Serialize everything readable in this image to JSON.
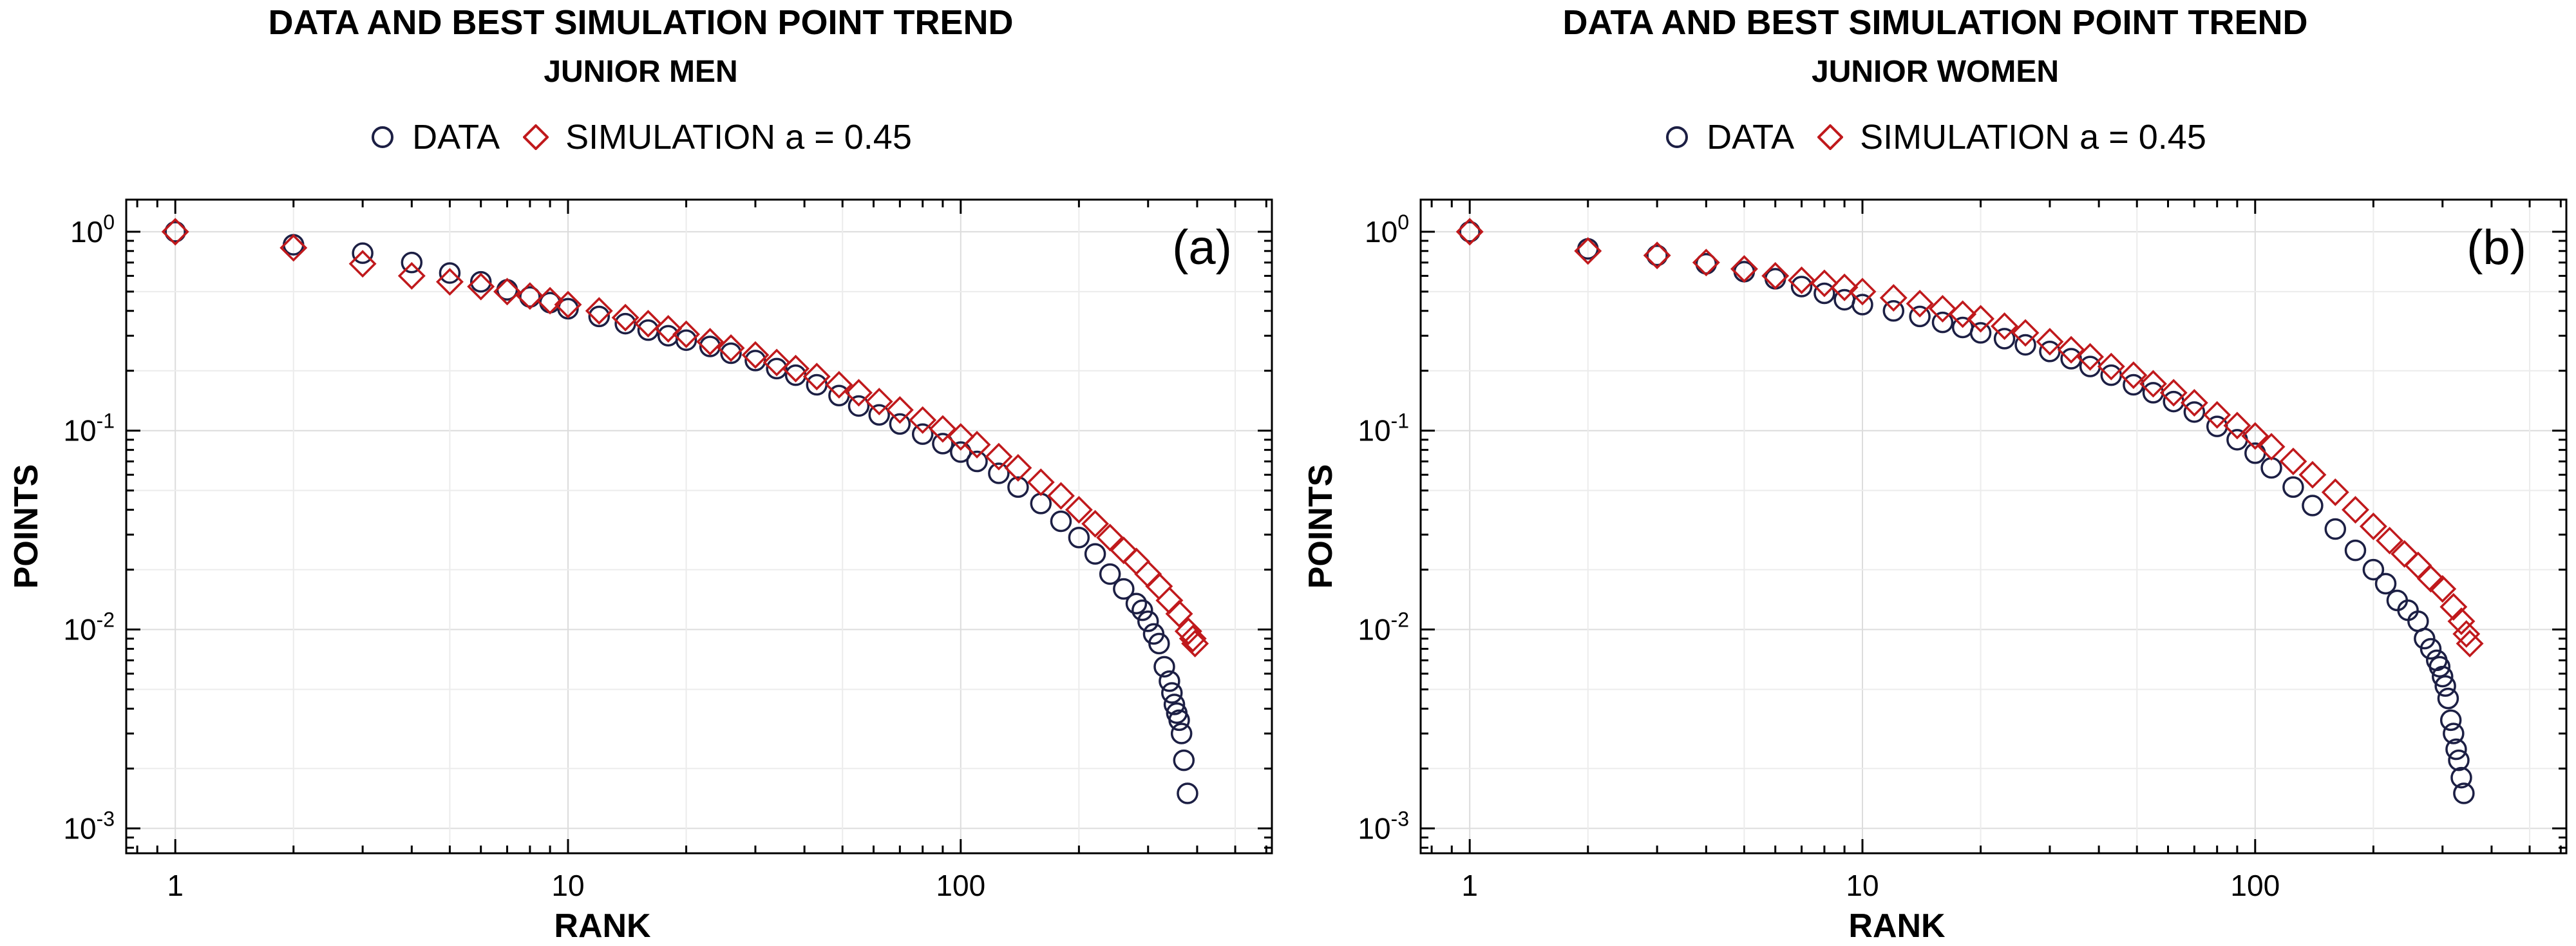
{
  "colors": {
    "data": "#1c1f44",
    "simulation": "#c0191c",
    "grid": "#dcdcdc",
    "axis": "#000000"
  },
  "chart_data": [
    {
      "type": "scatter",
      "title": "DATA AND BEST SIMULATION POINT TREND",
      "subtitle": "JUNIOR MEN",
      "panel_label": "(a)",
      "xlabel": "RANK",
      "ylabel": "POINTS",
      "xscale": "log",
      "yscale": "log",
      "xlim": [
        0.75,
        620
      ],
      "ylim": [
        0.00075,
        1.45
      ],
      "x_ticks": [
        1,
        10,
        100
      ],
      "x_tick_labels": [
        "1",
        "10",
        "100"
      ],
      "y_ticks": [
        0.001,
        0.01,
        0.1,
        1
      ],
      "y_tick_labels": [
        {
          "base": "10",
          "exp": "-3"
        },
        {
          "base": "10",
          "exp": "-2"
        },
        {
          "base": "10",
          "exp": "-1"
        },
        {
          "base": "10",
          "exp": "0"
        }
      ],
      "grid": true,
      "legend": "top-center",
      "series": [
        {
          "name": "DATA",
          "marker": "circle",
          "x": [
            1,
            2,
            3,
            4,
            5,
            6,
            7,
            8,
            9,
            10,
            12,
            14,
            16,
            18,
            20,
            23,
            26,
            30,
            34,
            38,
            43,
            49,
            55,
            62,
            70,
            80,
            90,
            100,
            110,
            125,
            140,
            160,
            180,
            200,
            220,
            240,
            260,
            280,
            290,
            300,
            310,
            320,
            330,
            340,
            345,
            350,
            355,
            360,
            365,
            370,
            378
          ],
          "y": [
            1.0,
            0.86,
            0.78,
            0.7,
            0.62,
            0.56,
            0.51,
            0.47,
            0.44,
            0.41,
            0.375,
            0.345,
            0.32,
            0.3,
            0.285,
            0.265,
            0.245,
            0.225,
            0.205,
            0.19,
            0.17,
            0.15,
            0.133,
            0.12,
            0.108,
            0.096,
            0.086,
            0.078,
            0.07,
            0.061,
            0.052,
            0.043,
            0.035,
            0.029,
            0.024,
            0.019,
            0.016,
            0.0135,
            0.0125,
            0.011,
            0.0095,
            0.0085,
            0.0065,
            0.0055,
            0.0048,
            0.0042,
            0.0038,
            0.0035,
            0.003,
            0.0022,
            0.0015
          ]
        },
        {
          "name": "SIMULATION a = 0.45",
          "marker": "diamond",
          "x": [
            1,
            2,
            3,
            4,
            5,
            6,
            7,
            8,
            9,
            10,
            12,
            14,
            16,
            18,
            20,
            23,
            26,
            30,
            34,
            38,
            43,
            49,
            55,
            62,
            70,
            80,
            90,
            100,
            110,
            125,
            140,
            160,
            180,
            200,
            220,
            240,
            260,
            280,
            300,
            320,
            340,
            360,
            380,
            390,
            395
          ],
          "y": [
            1.0,
            0.83,
            0.69,
            0.6,
            0.56,
            0.53,
            0.5,
            0.475,
            0.45,
            0.43,
            0.4,
            0.37,
            0.345,
            0.325,
            0.305,
            0.28,
            0.26,
            0.24,
            0.22,
            0.205,
            0.187,
            0.17,
            0.155,
            0.14,
            0.127,
            0.113,
            0.102,
            0.093,
            0.085,
            0.074,
            0.065,
            0.055,
            0.047,
            0.04,
            0.034,
            0.029,
            0.025,
            0.022,
            0.019,
            0.0165,
            0.014,
            0.012,
            0.0098,
            0.009,
            0.0085
          ]
        }
      ]
    },
    {
      "type": "scatter",
      "title": "DATA AND BEST SIMULATION POINT TREND",
      "subtitle": "JUNIOR WOMEN",
      "panel_label": "(b)",
      "xlabel": "RANK",
      "ylabel": "POINTS",
      "xscale": "log",
      "yscale": "log",
      "xlim": [
        0.75,
        620
      ],
      "ylim": [
        0.00075,
        1.45
      ],
      "x_ticks": [
        1,
        10,
        100
      ],
      "x_tick_labels": [
        "1",
        "10",
        "100"
      ],
      "y_ticks": [
        0.001,
        0.01,
        0.1,
        1
      ],
      "y_tick_labels": [
        {
          "base": "10",
          "exp": "-3"
        },
        {
          "base": "10",
          "exp": "-2"
        },
        {
          "base": "10",
          "exp": "-1"
        },
        {
          "base": "10",
          "exp": "0"
        }
      ],
      "grid": true,
      "legend": "top-center",
      "series": [
        {
          "name": "DATA",
          "marker": "circle",
          "x": [
            1,
            2,
            3,
            4,
            5,
            6,
            7,
            8,
            9,
            10,
            12,
            14,
            16,
            18,
            20,
            23,
            26,
            30,
            34,
            38,
            43,
            49,
            55,
            62,
            70,
            80,
            90,
            100,
            110,
            125,
            140,
            160,
            180,
            200,
            215,
            230,
            245,
            260,
            270,
            280,
            290,
            295,
            300,
            305,
            310,
            315,
            320,
            325,
            330,
            335,
            340
          ],
          "y": [
            1.0,
            0.82,
            0.76,
            0.69,
            0.63,
            0.58,
            0.53,
            0.49,
            0.455,
            0.43,
            0.4,
            0.375,
            0.35,
            0.33,
            0.31,
            0.29,
            0.27,
            0.25,
            0.23,
            0.21,
            0.19,
            0.17,
            0.155,
            0.14,
            0.124,
            0.105,
            0.09,
            0.077,
            0.065,
            0.052,
            0.042,
            0.032,
            0.025,
            0.02,
            0.017,
            0.014,
            0.0125,
            0.011,
            0.009,
            0.008,
            0.007,
            0.0065,
            0.0058,
            0.0052,
            0.0045,
            0.0035,
            0.003,
            0.0025,
            0.0022,
            0.0018,
            0.0015
          ]
        },
        {
          "name": "SIMULATION a = 0.45",
          "marker": "diamond",
          "x": [
            1,
            2,
            3,
            4,
            5,
            6,
            7,
            8,
            9,
            10,
            12,
            14,
            16,
            18,
            20,
            23,
            26,
            30,
            34,
            38,
            43,
            49,
            55,
            62,
            70,
            80,
            90,
            100,
            110,
            125,
            140,
            160,
            180,
            200,
            220,
            240,
            260,
            280,
            300,
            320,
            335,
            345,
            352
          ],
          "y": [
            1.0,
            0.8,
            0.76,
            0.7,
            0.65,
            0.6,
            0.57,
            0.55,
            0.525,
            0.5,
            0.465,
            0.435,
            0.41,
            0.385,
            0.365,
            0.335,
            0.31,
            0.28,
            0.255,
            0.235,
            0.21,
            0.19,
            0.172,
            0.155,
            0.138,
            0.12,
            0.106,
            0.094,
            0.083,
            0.07,
            0.06,
            0.049,
            0.04,
            0.033,
            0.028,
            0.024,
            0.021,
            0.018,
            0.016,
            0.013,
            0.011,
            0.0095,
            0.0085
          ]
        }
      ]
    }
  ]
}
